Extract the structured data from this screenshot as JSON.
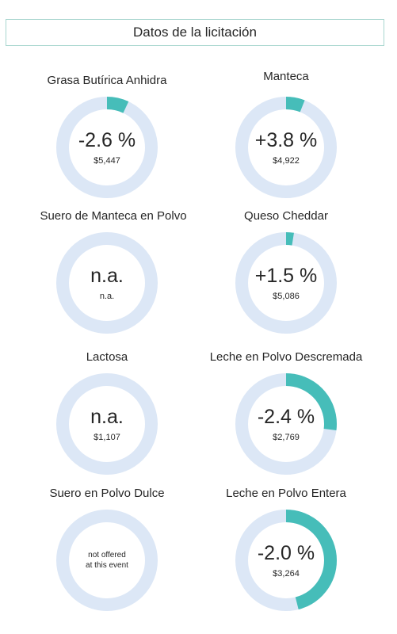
{
  "header": {
    "title": "Datos de la licitación"
  },
  "colors": {
    "ring_track": "#dce7f6",
    "ring_fill": "#46bdb9"
  },
  "products": [
    {
      "name": "Grasa Butírica Anhidra",
      "change": "-2.6 %",
      "price": "$5,447",
      "note": "",
      "fill": 0.07
    },
    {
      "name": "Manteca",
      "change": "+3.8 %",
      "price": "$4,922",
      "note": "",
      "fill": 0.06
    },
    {
      "name": "Suero de Manteca en Polvo",
      "change": "n.a.",
      "price": "n.a.",
      "note": "",
      "fill": 0
    },
    {
      "name": "Queso Cheddar",
      "change": "+1.5 %",
      "price": "$5,086",
      "note": "",
      "fill": 0.025
    },
    {
      "name": "Lactosa",
      "change": "n.a.",
      "price": "$1,107",
      "note": "",
      "fill": 0
    },
    {
      "name": "Leche en Polvo Descremada",
      "change": "-2.4 %",
      "price": "$2,769",
      "note": "",
      "fill": 0.27
    },
    {
      "name": "Suero en Polvo Dulce",
      "change": "",
      "price": "",
      "note": "not offered\nat this event",
      "fill": 0
    },
    {
      "name": "Leche en Polvo Entera",
      "change": "-2.0 %",
      "price": "$3,264",
      "note": "",
      "fill": 0.46
    }
  ]
}
